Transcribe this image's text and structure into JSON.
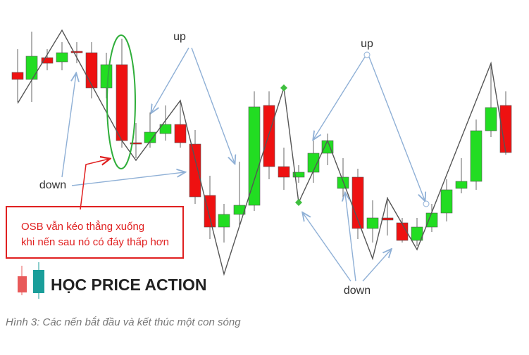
{
  "annotations": {
    "up": [
      "up",
      "up"
    ],
    "down": [
      "down",
      "down"
    ]
  },
  "callout": {
    "lines": [
      "OSB vẫn kéo thẳng xuống",
      "khi nến sau nó có đáy thấp hơn"
    ]
  },
  "logo": {
    "text": "HỌC PRICE ACTION"
  },
  "caption": "Hình 3: Các nến bắt đầu và kết thúc một con sóng"
}
